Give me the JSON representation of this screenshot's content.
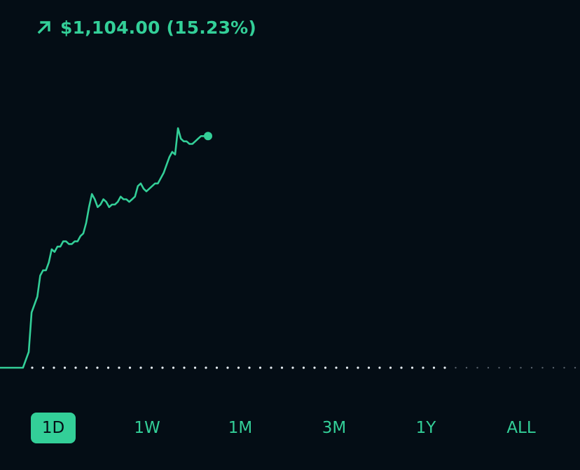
{
  "portfolio": {
    "change_text": "$1,104.00 (15.23%)",
    "direction_icon": "arrow-up-right-icon",
    "accent_color": "#33cf98",
    "background_color": "#040d15"
  },
  "chart_data": {
    "type": "line",
    "y_scale": "relative change from previous close (0 = baseline)",
    "baseline": 0,
    "values": [
      0,
      0,
      0,
      0,
      0,
      0,
      0,
      0,
      0,
      0.03,
      0.06,
      0.21,
      0.24,
      0.27,
      0.35,
      0.37,
      0.37,
      0.4,
      0.45,
      0.44,
      0.46,
      0.46,
      0.48,
      0.48,
      0.47,
      0.47,
      0.48,
      0.48,
      0.5,
      0.51,
      0.55,
      0.61,
      0.66,
      0.64,
      0.61,
      0.62,
      0.64,
      0.63,
      0.61,
      0.62,
      0.62,
      0.63,
      0.65,
      0.64,
      0.64,
      0.63,
      0.64,
      0.65,
      0.69,
      0.7,
      0.68,
      0.67,
      0.68,
      0.69,
      0.7,
      0.7,
      0.72,
      0.74,
      0.77,
      0.8,
      0.82,
      0.81,
      0.91,
      0.87,
      0.86,
      0.86,
      0.85,
      0.85,
      0.86,
      0.87,
      0.88,
      0.88
    ],
    "total_points_in_session": 203,
    "current_point_marker": true
  },
  "time_ranges": {
    "selected": "1D",
    "items": [
      {
        "label": "1D"
      },
      {
        "label": "1W"
      },
      {
        "label": "1M"
      },
      {
        "label": "3M"
      },
      {
        "label": "1Y"
      },
      {
        "label": "ALL"
      }
    ]
  }
}
